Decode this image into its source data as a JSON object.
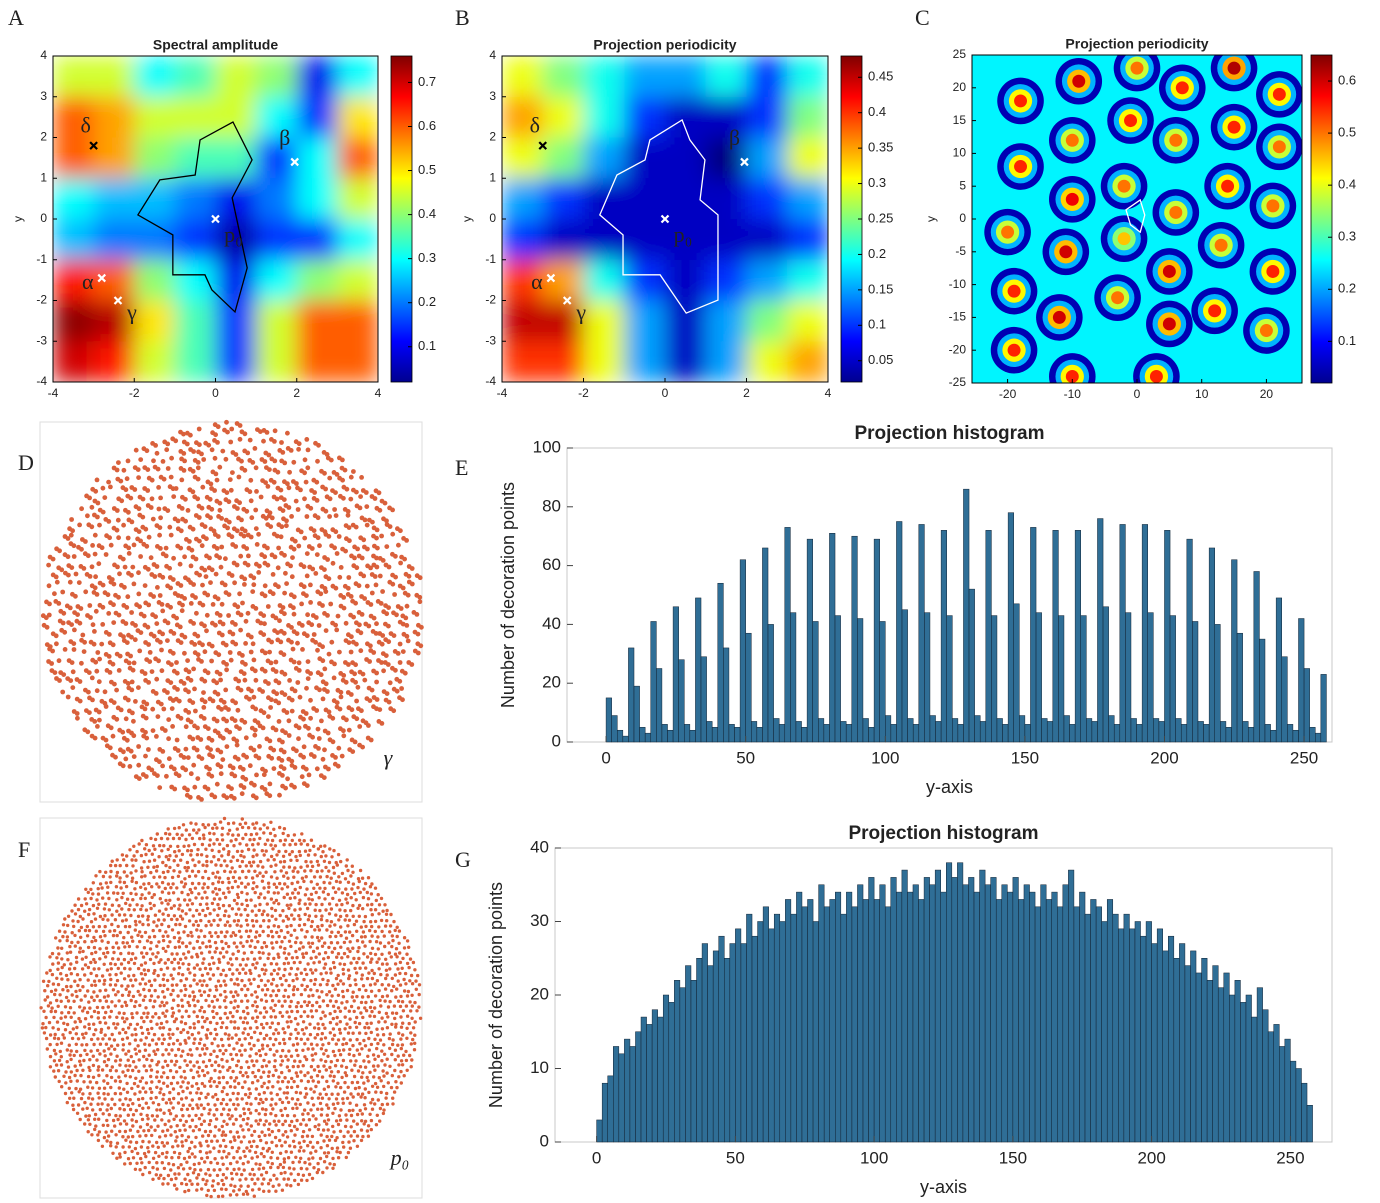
{
  "chart_data": [
    {
      "type": "heatmap",
      "panel": "A",
      "title": "Spectral amplitude",
      "ylabel": "y",
      "smooth": true,
      "xlim": [
        -4,
        4
      ],
      "ylim": [
        -4,
        4
      ],
      "xticks": [
        -4,
        -2,
        0,
        2,
        4
      ],
      "yticks": [
        -4,
        -3,
        -2,
        -1,
        0,
        1,
        2,
        3,
        4
      ],
      "x": [
        -3.5,
        -2.5,
        -1.5,
        -0.5,
        0.5,
        1.5,
        2.5,
        3.5
      ],
      "y": [
        3.5,
        2.5,
        1.5,
        0.5,
        -0.5,
        -1.5,
        -2.5,
        -3.5
      ],
      "z": [
        [
          0.45,
          0.45,
          0.3,
          0.35,
          0.45,
          0.4,
          0.1,
          0.3
        ],
        [
          0.6,
          0.55,
          0.45,
          0.45,
          0.45,
          0.3,
          0.15,
          0.5
        ],
        [
          0.6,
          0.55,
          0.4,
          0.35,
          0.35,
          0.15,
          0.3,
          0.6
        ],
        [
          0.3,
          0.25,
          0.25,
          0.2,
          0.1,
          0.2,
          0.3,
          0.45
        ],
        [
          0.25,
          0.2,
          0.2,
          0.15,
          0.05,
          0.15,
          0.15,
          0.3
        ],
        [
          0.65,
          0.6,
          0.4,
          0.3,
          0.1,
          0.3,
          0.4,
          0.45
        ],
        [
          0.75,
          0.72,
          0.5,
          0.35,
          0.15,
          0.45,
          0.6,
          0.6
        ],
        [
          0.7,
          0.65,
          0.45,
          0.35,
          0.15,
          0.45,
          0.6,
          0.6
        ]
      ],
      "colorbar": {
        "lim": [
          0.02,
          0.76
        ],
        "ticks": [
          0.1,
          0.2,
          0.3,
          0.4,
          0.5,
          0.6,
          0.7
        ]
      },
      "outline": {
        "color": "#000000",
        "x": [
          -0.38,
          0.43,
          0.9,
          0.41,
          0.78,
          0.48,
          -0.09,
          -0.26,
          -1.05,
          -1.05,
          -1.91,
          -1.37,
          -0.5
        ],
        "y": [
          1.94,
          2.38,
          1.45,
          0.52,
          -1.2,
          -2.28,
          -1.74,
          -1.37,
          -1.37,
          -0.39,
          0.1,
          0.96,
          1.08
        ]
      },
      "points": [
        {
          "label": "δ",
          "x": -3,
          "y": 1.8,
          "color": "#000000"
        },
        {
          "label": "β",
          "x": 1.95,
          "y": 1.4,
          "color": "#ffffff"
        },
        {
          "label": "p₀",
          "x": 0,
          "y": 0,
          "color": "#ffffff"
        },
        {
          "label": "α",
          "x": -2.8,
          "y": -1.45,
          "color": "#ffffff"
        },
        {
          "label": "γ",
          "x": -2.4,
          "y": -2,
          "color": "#ffffff"
        }
      ]
    },
    {
      "type": "heatmap",
      "panel": "B",
      "title": "Projection periodicity",
      "ylabel": "y",
      "smooth": true,
      "xlim": [
        -4,
        4
      ],
      "ylim": [
        -4,
        4
      ],
      "xticks": [
        -4,
        -2,
        0,
        2,
        4
      ],
      "yticks": [
        -4,
        -3,
        -2,
        -1,
        0,
        1,
        2,
        3,
        4
      ],
      "x": [
        -3.5,
        -2.5,
        -1.5,
        -0.5,
        0.5,
        1.5,
        2.5,
        3.5
      ],
      "y": [
        3.5,
        2.5,
        1.5,
        0.5,
        -0.5,
        -1.5,
        -2.5,
        -3.5
      ],
      "z": [
        [
          0.3,
          0.25,
          0.2,
          0.15,
          0.15,
          0.2,
          0.1,
          0.2
        ],
        [
          0.35,
          0.3,
          0.2,
          0.1,
          0.05,
          0.05,
          0.1,
          0.25
        ],
        [
          0.3,
          0.25,
          0.15,
          0.05,
          0.05,
          0.02,
          0.15,
          0.3
        ],
        [
          0.15,
          0.1,
          0.05,
          0.05,
          0.05,
          0.05,
          0.1,
          0.15
        ],
        [
          0.1,
          0.05,
          0.05,
          0.05,
          0.05,
          0.05,
          0.05,
          0.1
        ],
        [
          0.4,
          0.35,
          0.2,
          0.1,
          0.05,
          0.1,
          0.15,
          0.2
        ],
        [
          0.45,
          0.45,
          0.3,
          0.15,
          0.05,
          0.15,
          0.25,
          0.3
        ],
        [
          0.4,
          0.4,
          0.3,
          0.15,
          0.05,
          0.15,
          0.3,
          0.35
        ]
      ],
      "colorbar": {
        "lim": [
          0.02,
          0.48
        ],
        "ticks": [
          0.05,
          0.1,
          0.15,
          0.2,
          0.25,
          0.3,
          0.35,
          0.4,
          0.45
        ]
      },
      "outline": {
        "color": "#ffffff",
        "x": [
          0.42,
          0.61,
          0.98,
          0.86,
          1.3,
          1.3,
          0.52,
          -0.12,
          -1.03,
          -1.03,
          -1.6,
          -1.18,
          -0.49,
          -0.37
        ],
        "y": [
          2.43,
          1.94,
          1.45,
          0.47,
          0.1,
          -1.99,
          -2.31,
          -1.37,
          -1.37,
          -0.39,
          0.1,
          1.08,
          1.45,
          1.94
        ]
      },
      "points": [
        {
          "label": "δ",
          "x": -3,
          "y": 1.8,
          "color": "#000000"
        },
        {
          "label": "β",
          "x": 1.95,
          "y": 1.4,
          "color": "#ffffff"
        },
        {
          "label": "p₀",
          "x": 0,
          "y": 0,
          "color": "#ffffff"
        },
        {
          "label": "α",
          "x": -2.8,
          "y": -1.45,
          "color": "#ffffff"
        },
        {
          "label": "γ",
          "x": -2.4,
          "y": -2,
          "color": "#ffffff"
        }
      ]
    },
    {
      "type": "peak-map",
      "panel": "C",
      "title": "Projection periodicity",
      "ylabel": "y",
      "xlim": [
        -25.5,
        25.5
      ],
      "ylim": [
        -25,
        25
      ],
      "xticks": [
        -20,
        -10,
        0,
        10,
        20
      ],
      "yticks": [
        -25,
        -20,
        -15,
        -10,
        -5,
        0,
        5,
        10,
        15,
        20,
        25
      ],
      "background": 0.25,
      "peaks": {
        "x": [
          -18,
          -9,
          0,
          7,
          15,
          22,
          -18,
          -10,
          -1,
          6,
          15,
          22,
          -20,
          -10,
          -2,
          6,
          14,
          21,
          -19,
          -11,
          -2,
          5,
          13,
          21,
          -19,
          -12,
          -3,
          5,
          12,
          20,
          -10,
          3
        ],
        "y": [
          18,
          21,
          23,
          20,
          23,
          19,
          8,
          12,
          15,
          12,
          14,
          11,
          -2,
          3,
          5,
          1,
          5,
          2,
          -11,
          -5,
          -3,
          -8,
          -4,
          -8,
          -20,
          -15,
          -12,
          -16,
          -14,
          -17,
          -24,
          -24
        ],
        "values": [
          0.55,
          0.6,
          0.5,
          0.55,
          0.62,
          0.55,
          0.55,
          0.5,
          0.55,
          0.5,
          0.55,
          0.5,
          0.5,
          0.58,
          0.5,
          0.5,
          0.55,
          0.5,
          0.55,
          0.6,
          0.45,
          0.6,
          0.5,
          0.55,
          0.55,
          0.6,
          0.5,
          0.6,
          0.55,
          0.5,
          0.55,
          0.55
        ]
      },
      "colorbar": {
        "lim": [
          0.02,
          0.65
        ],
        "ticks": [
          0.1,
          0.2,
          0.3,
          0.4,
          0.5,
          0.6
        ]
      },
      "outline": {
        "color": "#ffffff",
        "x": [
          -1.7,
          0.5,
          1.2,
          0.5,
          -1
        ],
        "y": [
          1.4,
          2.9,
          0.6,
          -2,
          -0.9
        ]
      }
    },
    {
      "type": "point-pattern",
      "panel": "D",
      "label": "γ",
      "color": "#d9603b"
    },
    {
      "type": "histogram",
      "panel": "E",
      "title": "Projection histogram",
      "xlabel": "y-axis",
      "ylabel": "Number of decoration points",
      "color": "#2f6e96",
      "xlim": [
        -14,
        260
      ],
      "ylim": [
        0,
        100
      ],
      "xticks": [
        0,
        50,
        100,
        150,
        200,
        250
      ],
      "yticks": [
        0,
        20,
        40,
        60,
        80,
        100
      ],
      "bins": [
        0,
        2,
        4,
        6,
        8,
        10,
        12,
        14,
        16,
        18,
        20,
        22,
        24,
        26,
        28,
        30,
        32,
        34,
        36,
        38,
        40,
        42,
        44,
        46,
        48,
        50,
        52,
        54,
        56,
        58,
        60,
        62,
        64,
        66,
        68,
        70,
        72,
        74,
        76,
        78,
        80,
        82,
        84,
        86,
        88,
        90,
        92,
        94,
        96,
        98,
        100,
        102,
        104,
        106,
        108,
        110,
        112,
        114,
        116,
        118,
        120,
        122,
        124,
        126,
        128,
        130,
        132,
        134,
        136,
        138,
        140,
        142,
        144,
        146,
        148,
        150,
        152,
        154,
        156,
        158,
        160,
        162,
        164,
        166,
        168,
        170,
        172,
        174,
        176,
        178,
        180,
        182,
        184,
        186,
        188,
        190,
        192,
        194,
        196,
        198,
        200,
        202,
        204,
        206,
        208,
        210,
        212,
        214,
        216,
        218,
        220,
        222,
        224,
        226,
        228,
        230,
        232,
        234,
        236,
        238,
        240,
        242,
        244,
        246,
        248,
        250,
        252,
        254,
        256,
        258
      ],
      "values": [
        15,
        9,
        4,
        2,
        32,
        19,
        5,
        3,
        41,
        25,
        6,
        4,
        46,
        28,
        6,
        4,
        49,
        29,
        7,
        5,
        54,
        32,
        6,
        5,
        62,
        37,
        7,
        5,
        66,
        40,
        8,
        6,
        73,
        44,
        7,
        5,
        69,
        41,
        8,
        6,
        71,
        43,
        7,
        6,
        70,
        42,
        8,
        5,
        69,
        41,
        9,
        6,
        75,
        45,
        8,
        6,
        74,
        44,
        9,
        7,
        72,
        43,
        8,
        6,
        86,
        52,
        9,
        7,
        72,
        43,
        8,
        6,
        78,
        47,
        9,
        6,
        73,
        44,
        8,
        7,
        72,
        43,
        9,
        6,
        72,
        43,
        8,
        7,
        76,
        46,
        9,
        6,
        74,
        44,
        8,
        6,
        74,
        44,
        8,
        7,
        72,
        43,
        8,
        6,
        69,
        41,
        7,
        6,
        66,
        40,
        7,
        5,
        62,
        37,
        7,
        5,
        58,
        35,
        6,
        4,
        49,
        29,
        6,
        4,
        42,
        25,
        5,
        3,
        23
      ]
    },
    {
      "type": "point-pattern",
      "panel": "F",
      "label": "p₀",
      "color": "#d9603b"
    },
    {
      "type": "histogram",
      "panel": "G",
      "title": "Projection histogram",
      "xlabel": "y-axis",
      "ylabel": "Number of decoration points",
      "color": "#2f6e96",
      "xlim": [
        -15,
        265
      ],
      "ylim": [
        0,
        40
      ],
      "xticks": [
        0,
        50,
        100,
        150,
        200,
        250
      ],
      "yticks": [
        0,
        10,
        20,
        30,
        40
      ],
      "bins": [
        0,
        2,
        4,
        6,
        8,
        10,
        12,
        14,
        16,
        18,
        20,
        22,
        24,
        26,
        28,
        30,
        32,
        34,
        36,
        38,
        40,
        42,
        44,
        46,
        48,
        50,
        52,
        54,
        56,
        58,
        60,
        62,
        64,
        66,
        68,
        70,
        72,
        74,
        76,
        78,
        80,
        82,
        84,
        86,
        88,
        90,
        92,
        94,
        96,
        98,
        100,
        102,
        104,
        106,
        108,
        110,
        112,
        114,
        116,
        118,
        120,
        122,
        124,
        126,
        128,
        130,
        132,
        134,
        136,
        138,
        140,
        142,
        144,
        146,
        148,
        150,
        152,
        154,
        156,
        158,
        160,
        162,
        164,
        166,
        168,
        170,
        172,
        174,
        176,
        178,
        180,
        182,
        184,
        186,
        188,
        190,
        192,
        194,
        196,
        198,
        200,
        202,
        204,
        206,
        208,
        210,
        212,
        214,
        216,
        218,
        220,
        222,
        224,
        226,
        228,
        230,
        232,
        234,
        236,
        238,
        240,
        242,
        244,
        246,
        248,
        250,
        252,
        254,
        256,
        258
      ],
      "values": [
        3,
        8,
        9,
        13,
        12,
        14,
        13,
        15,
        17,
        16,
        18,
        17,
        20,
        19,
        22,
        21,
        24,
        22,
        25,
        27,
        24,
        26,
        28,
        25,
        27,
        29,
        27,
        31,
        28,
        30,
        32,
        29,
        31,
        30,
        33,
        31,
        34,
        32,
        33,
        30,
        35,
        32,
        33,
        34,
        31,
        34,
        32,
        35,
        33,
        36,
        33,
        35,
        32,
        36,
        34,
        37,
        34,
        35,
        33,
        36,
        35,
        37,
        34,
        38,
        36,
        38,
        35,
        36,
        34,
        37,
        35,
        36,
        33,
        35,
        34,
        36,
        33,
        35,
        34,
        32,
        35,
        33,
        34,
        32,
        35,
        37,
        32,
        34,
        31,
        33,
        32,
        30,
        33,
        31,
        29,
        31,
        29,
        30,
        28,
        30,
        27,
        29,
        26,
        28,
        25,
        27,
        24,
        26,
        23,
        25,
        22,
        24,
        21,
        23,
        20,
        22,
        19,
        20,
        17,
        21,
        18,
        15,
        16,
        13,
        14,
        11,
        10,
        8,
        5
      ]
    }
  ]
}
